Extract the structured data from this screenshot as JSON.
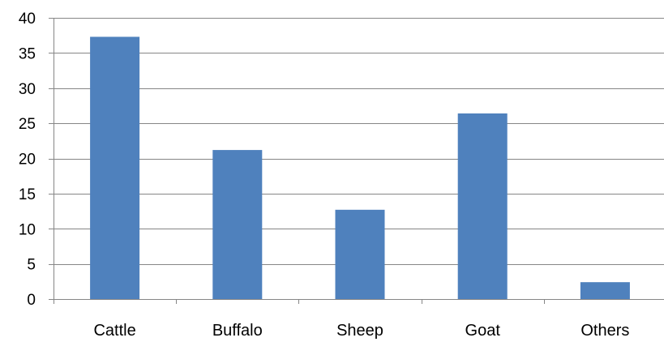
{
  "chart_data": {
    "type": "bar",
    "title": "",
    "xlabel": "",
    "ylabel": "",
    "categories": [
      "Cattle",
      "Buffalo",
      "Sheep",
      "Goat",
      "Others"
    ],
    "values": [
      37.3,
      21.2,
      12.7,
      26.4,
      2.4
    ],
    "ylim": [
      0,
      40
    ],
    "yticks": [
      0,
      5,
      10,
      15,
      20,
      25,
      30,
      35,
      40
    ],
    "grid": true,
    "legend": "none",
    "bar_color": "#4f81bd",
    "grid_color": "#868686",
    "axis_color": "#868686"
  }
}
